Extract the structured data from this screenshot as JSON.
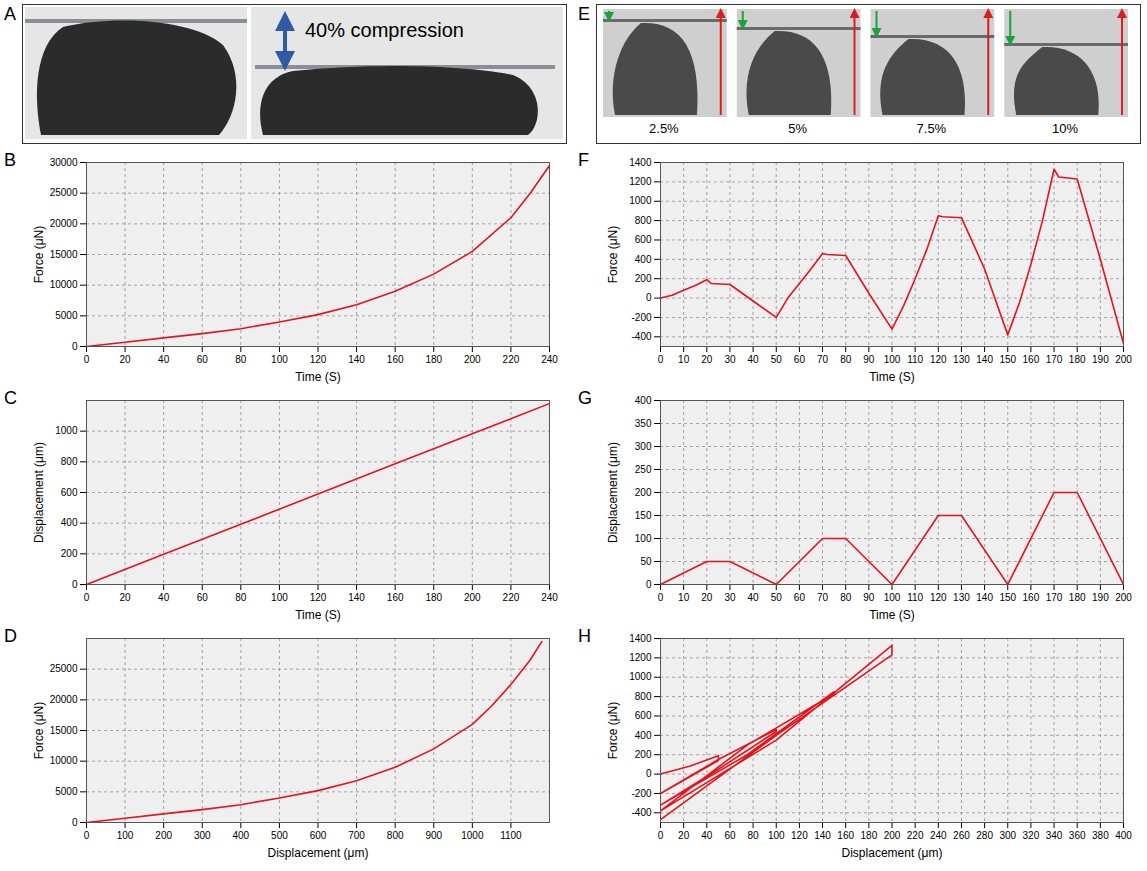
{
  "images": [
    {
      "panel": "A",
      "caption": "40% compression"
    },
    {
      "panel": "E",
      "labels": [
        "2.5%",
        "5%",
        "7.5%",
        "10%"
      ]
    }
  ],
  "chart_data": [
    {
      "panel": "B",
      "type": "line",
      "color": "#e3141b",
      "grid": true,
      "xlabel": "Time (S)",
      "ylabel": "Force (μN)",
      "x": [
        0,
        20,
        40,
        60,
        80,
        100,
        120,
        140,
        160,
        180,
        200,
        220,
        230,
        240
      ],
      "values": [
        0,
        700,
        1400,
        2100,
        2900,
        4000,
        5200,
        6800,
        9000,
        11800,
        15500,
        21000,
        25000,
        29500
      ],
      "xlim": [
        0,
        240
      ],
      "xticks": [
        0,
        20,
        40,
        60,
        80,
        100,
        120,
        140,
        160,
        180,
        200,
        220,
        240
      ],
      "ylim": [
        0,
        30000
      ],
      "yticks": [
        0,
        5000,
        10000,
        15000,
        20000,
        25000,
        30000
      ]
    },
    {
      "panel": "C",
      "type": "line",
      "color": "#e3141b",
      "grid": true,
      "xlabel": "Time (S)",
      "ylabel": "Displacement (μm)",
      "x": [
        0,
        40,
        80,
        120,
        160,
        200,
        240
      ],
      "values": [
        0,
        197,
        393,
        590,
        787,
        983,
        1180
      ],
      "xlim": [
        0,
        240
      ],
      "xticks": [
        0,
        20,
        40,
        60,
        80,
        100,
        120,
        140,
        160,
        180,
        200,
        220,
        240
      ],
      "ylim": [
        0,
        1200
      ],
      "yticks": [
        0,
        200,
        400,
        600,
        800,
        1000
      ]
    },
    {
      "panel": "D",
      "type": "line",
      "color": "#e3141b",
      "grid": true,
      "xlabel": "Displacement (μm)",
      "ylabel": "Force (μN)",
      "x": [
        0,
        100,
        200,
        300,
        400,
        500,
        600,
        700,
        800,
        900,
        1000,
        1050,
        1100,
        1150,
        1180
      ],
      "values": [
        0,
        700,
        1400,
        2100,
        2900,
        4000,
        5200,
        6800,
        9000,
        12000,
        16000,
        19000,
        22500,
        26500,
        29500
      ],
      "xlim": [
        0,
        1200
      ],
      "xticks": [
        0,
        100,
        200,
        300,
        400,
        500,
        600,
        700,
        800,
        900,
        1000,
        1100
      ],
      "ylim": [
        0,
        30000
      ],
      "yticks": [
        0,
        5000,
        10000,
        15000,
        20000,
        25000
      ]
    },
    {
      "panel": "F",
      "type": "line",
      "color": "#e3141b",
      "grid": true,
      "xlabel": "Time (S)",
      "ylabel": "Force (μN)",
      "x": [
        0,
        5,
        10,
        15,
        20,
        22,
        30,
        40,
        50,
        55,
        60,
        65,
        70,
        72,
        80,
        90,
        100,
        105,
        110,
        115,
        120,
        122,
        130,
        140,
        150,
        155,
        160,
        165,
        170,
        172,
        180,
        190,
        200
      ],
      "values": [
        0,
        30,
        80,
        130,
        190,
        150,
        140,
        -30,
        -200,
        0,
        150,
        300,
        460,
        450,
        440,
        50,
        -320,
        -80,
        200,
        500,
        850,
        840,
        830,
        300,
        -380,
        -50,
        350,
        800,
        1330,
        1250,
        1230,
        400,
        -470
      ],
      "xlim": [
        0,
        200
      ],
      "xticks": [
        0,
        10,
        20,
        30,
        40,
        50,
        60,
        70,
        80,
        90,
        100,
        110,
        120,
        130,
        140,
        150,
        160,
        170,
        180,
        190,
        200
      ],
      "ylim": [
        -500,
        1400
      ],
      "yticks": [
        -400,
        -200,
        0,
        200,
        400,
        600,
        800,
        1000,
        1200,
        1400
      ]
    },
    {
      "panel": "G",
      "type": "line",
      "color": "#e3141b",
      "grid": true,
      "xlabel": "Time (S)",
      "ylabel": "Displacement (μm)",
      "x": [
        0,
        20,
        30,
        50,
        70,
        80,
        100,
        120,
        130,
        150,
        170,
        180,
        200
      ],
      "values": [
        0,
        50,
        50,
        0,
        100,
        100,
        0,
        150,
        150,
        0,
        200,
        200,
        0
      ],
      "xlim": [
        0,
        200
      ],
      "xticks": [
        0,
        10,
        20,
        30,
        40,
        50,
        60,
        70,
        80,
        90,
        100,
        110,
        120,
        130,
        140,
        150,
        160,
        170,
        180,
        190,
        200
      ],
      "ylim": [
        0,
        400
      ],
      "yticks": [
        0,
        50,
        100,
        150,
        200,
        250,
        300,
        350,
        400
      ]
    },
    {
      "panel": "H",
      "type": "line",
      "color": "#e3141b",
      "grid": true,
      "xlabel": "Displacement (μm)",
      "ylabel": "Force (μN)",
      "x": [
        0,
        25,
        50,
        50,
        25,
        0,
        50,
        100,
        100,
        50,
        0,
        75,
        150,
        150,
        75,
        0,
        100,
        200,
        200,
        100,
        0
      ],
      "values": [
        0,
        80,
        190,
        140,
        -30,
        -200,
        150,
        460,
        440,
        50,
        -320,
        200,
        850,
        830,
        300,
        -380,
        350,
        1330,
        1230,
        400,
        -470
      ],
      "xlim": [
        0,
        400
      ],
      "xticks": [
        0,
        20,
        40,
        60,
        80,
        100,
        120,
        140,
        160,
        180,
        200,
        220,
        240,
        260,
        280,
        300,
        320,
        340,
        360,
        380,
        400
      ],
      "ylim": [
        -500,
        1400
      ],
      "yticks": [
        -400,
        -200,
        0,
        200,
        400,
        600,
        800,
        1000,
        1200,
        1400
      ]
    }
  ]
}
